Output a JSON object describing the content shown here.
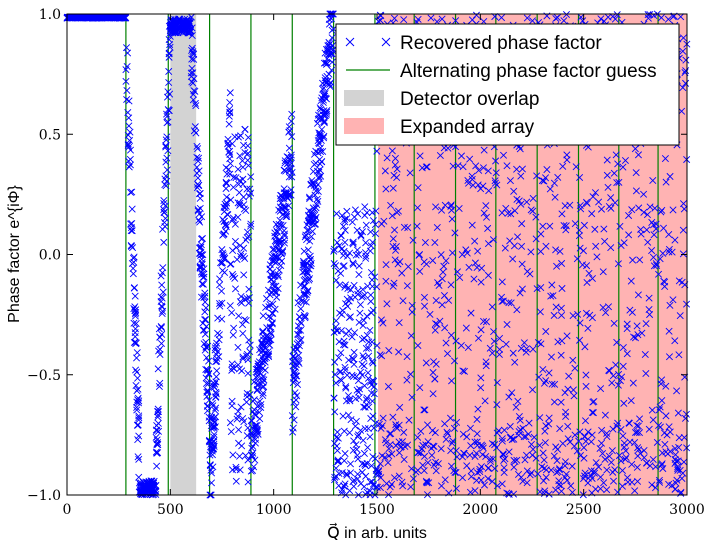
{
  "chart_data": {
    "type": "scatter",
    "ylabel": "Phase factor e^{iΦ}",
    "xlabel": "Q⃗ in arb. units",
    "xlim": [
      0,
      3000
    ],
    "ylim": [
      -1.0,
      1.0
    ],
    "xticks": [
      0,
      500,
      1000,
      1500,
      2000,
      2500,
      3000
    ],
    "xtick_labels": [
      "0",
      "500",
      "1000",
      "1500",
      "2000",
      "2500",
      "3000"
    ],
    "yticks": [
      -1.0,
      -0.5,
      0.0,
      0.5,
      1.0
    ],
    "ytick_labels": [
      "−1.0",
      "−0.5",
      "0.0",
      "0.5",
      "1.0"
    ],
    "grid": false,
    "legend_position": "top-right",
    "regions": [
      {
        "name": "Detector overlap",
        "x_start": 500,
        "x_end": 625,
        "color": "#d3d3d3"
      },
      {
        "name": "Expanded array",
        "x_start": 1505,
        "x_end": 3000,
        "color": "#ffb3b3"
      }
    ],
    "guess_lines": {
      "name": "Alternating phase factor guess",
      "color": "#008000",
      "x": [
        285,
        490,
        690,
        890,
        1090,
        1290,
        1490,
        1680,
        1880,
        2075,
        2275,
        2475,
        2670,
        2860
      ]
    },
    "series": [
      {
        "name": "Recovered phase factor",
        "marker": "x",
        "color": "#0000ff",
        "segments": [
          {
            "x_from": 0,
            "x_to": 285,
            "shape": "flat",
            "y": 0.985
          },
          {
            "x_from": 285,
            "x_to": 350,
            "shape": "fall",
            "y_from": 0.9,
            "y_to": -0.85
          },
          {
            "x_from": 350,
            "x_to": 430,
            "shape": "flat",
            "y": -0.97
          },
          {
            "x_from": 430,
            "x_to": 500,
            "shape": "rise",
            "y_from": -0.9,
            "y_to": 0.9
          },
          {
            "x_from": 500,
            "x_to": 600,
            "shape": "flat",
            "y": 0.95
          },
          {
            "x_from": 600,
            "x_to": 690,
            "shape": "fall",
            "y_from": 0.9,
            "y_to": -0.7
          },
          {
            "x_from": 690,
            "x_to": 790,
            "shape": "rise",
            "y_from": -0.95,
            "y_to": 0.5
          },
          {
            "x_from": 790,
            "x_to": 890,
            "shape": "scatter",
            "y_from": -0.95,
            "y_to": 0.55
          },
          {
            "x_from": 890,
            "x_to": 1090,
            "shape": "rise",
            "y_from": -0.8,
            "y_to": 0.45
          },
          {
            "x_from": 1090,
            "x_to": 1290,
            "shape": "rise",
            "y_from": -0.6,
            "y_to": 1.0
          },
          {
            "x_from": 1290,
            "x_to": 1490,
            "shape": "scatter",
            "y_from": -1.0,
            "y_to": 0.2
          },
          {
            "x_from": 1490,
            "x_to": 3000,
            "shape": "noise",
            "y_from": -1.0,
            "y_to": 1.0
          }
        ]
      }
    ],
    "legend": [
      {
        "label": "Recovered phase factor",
        "kind": "marker-x",
        "color": "#0000ff"
      },
      {
        "label": "Alternating phase factor guess",
        "kind": "line",
        "color": "#008000"
      },
      {
        "label": "Detector overlap",
        "kind": "patch",
        "color": "#d3d3d3"
      },
      {
        "label": "Expanded array",
        "kind": "patch",
        "color": "#ffb3b3"
      }
    ]
  }
}
